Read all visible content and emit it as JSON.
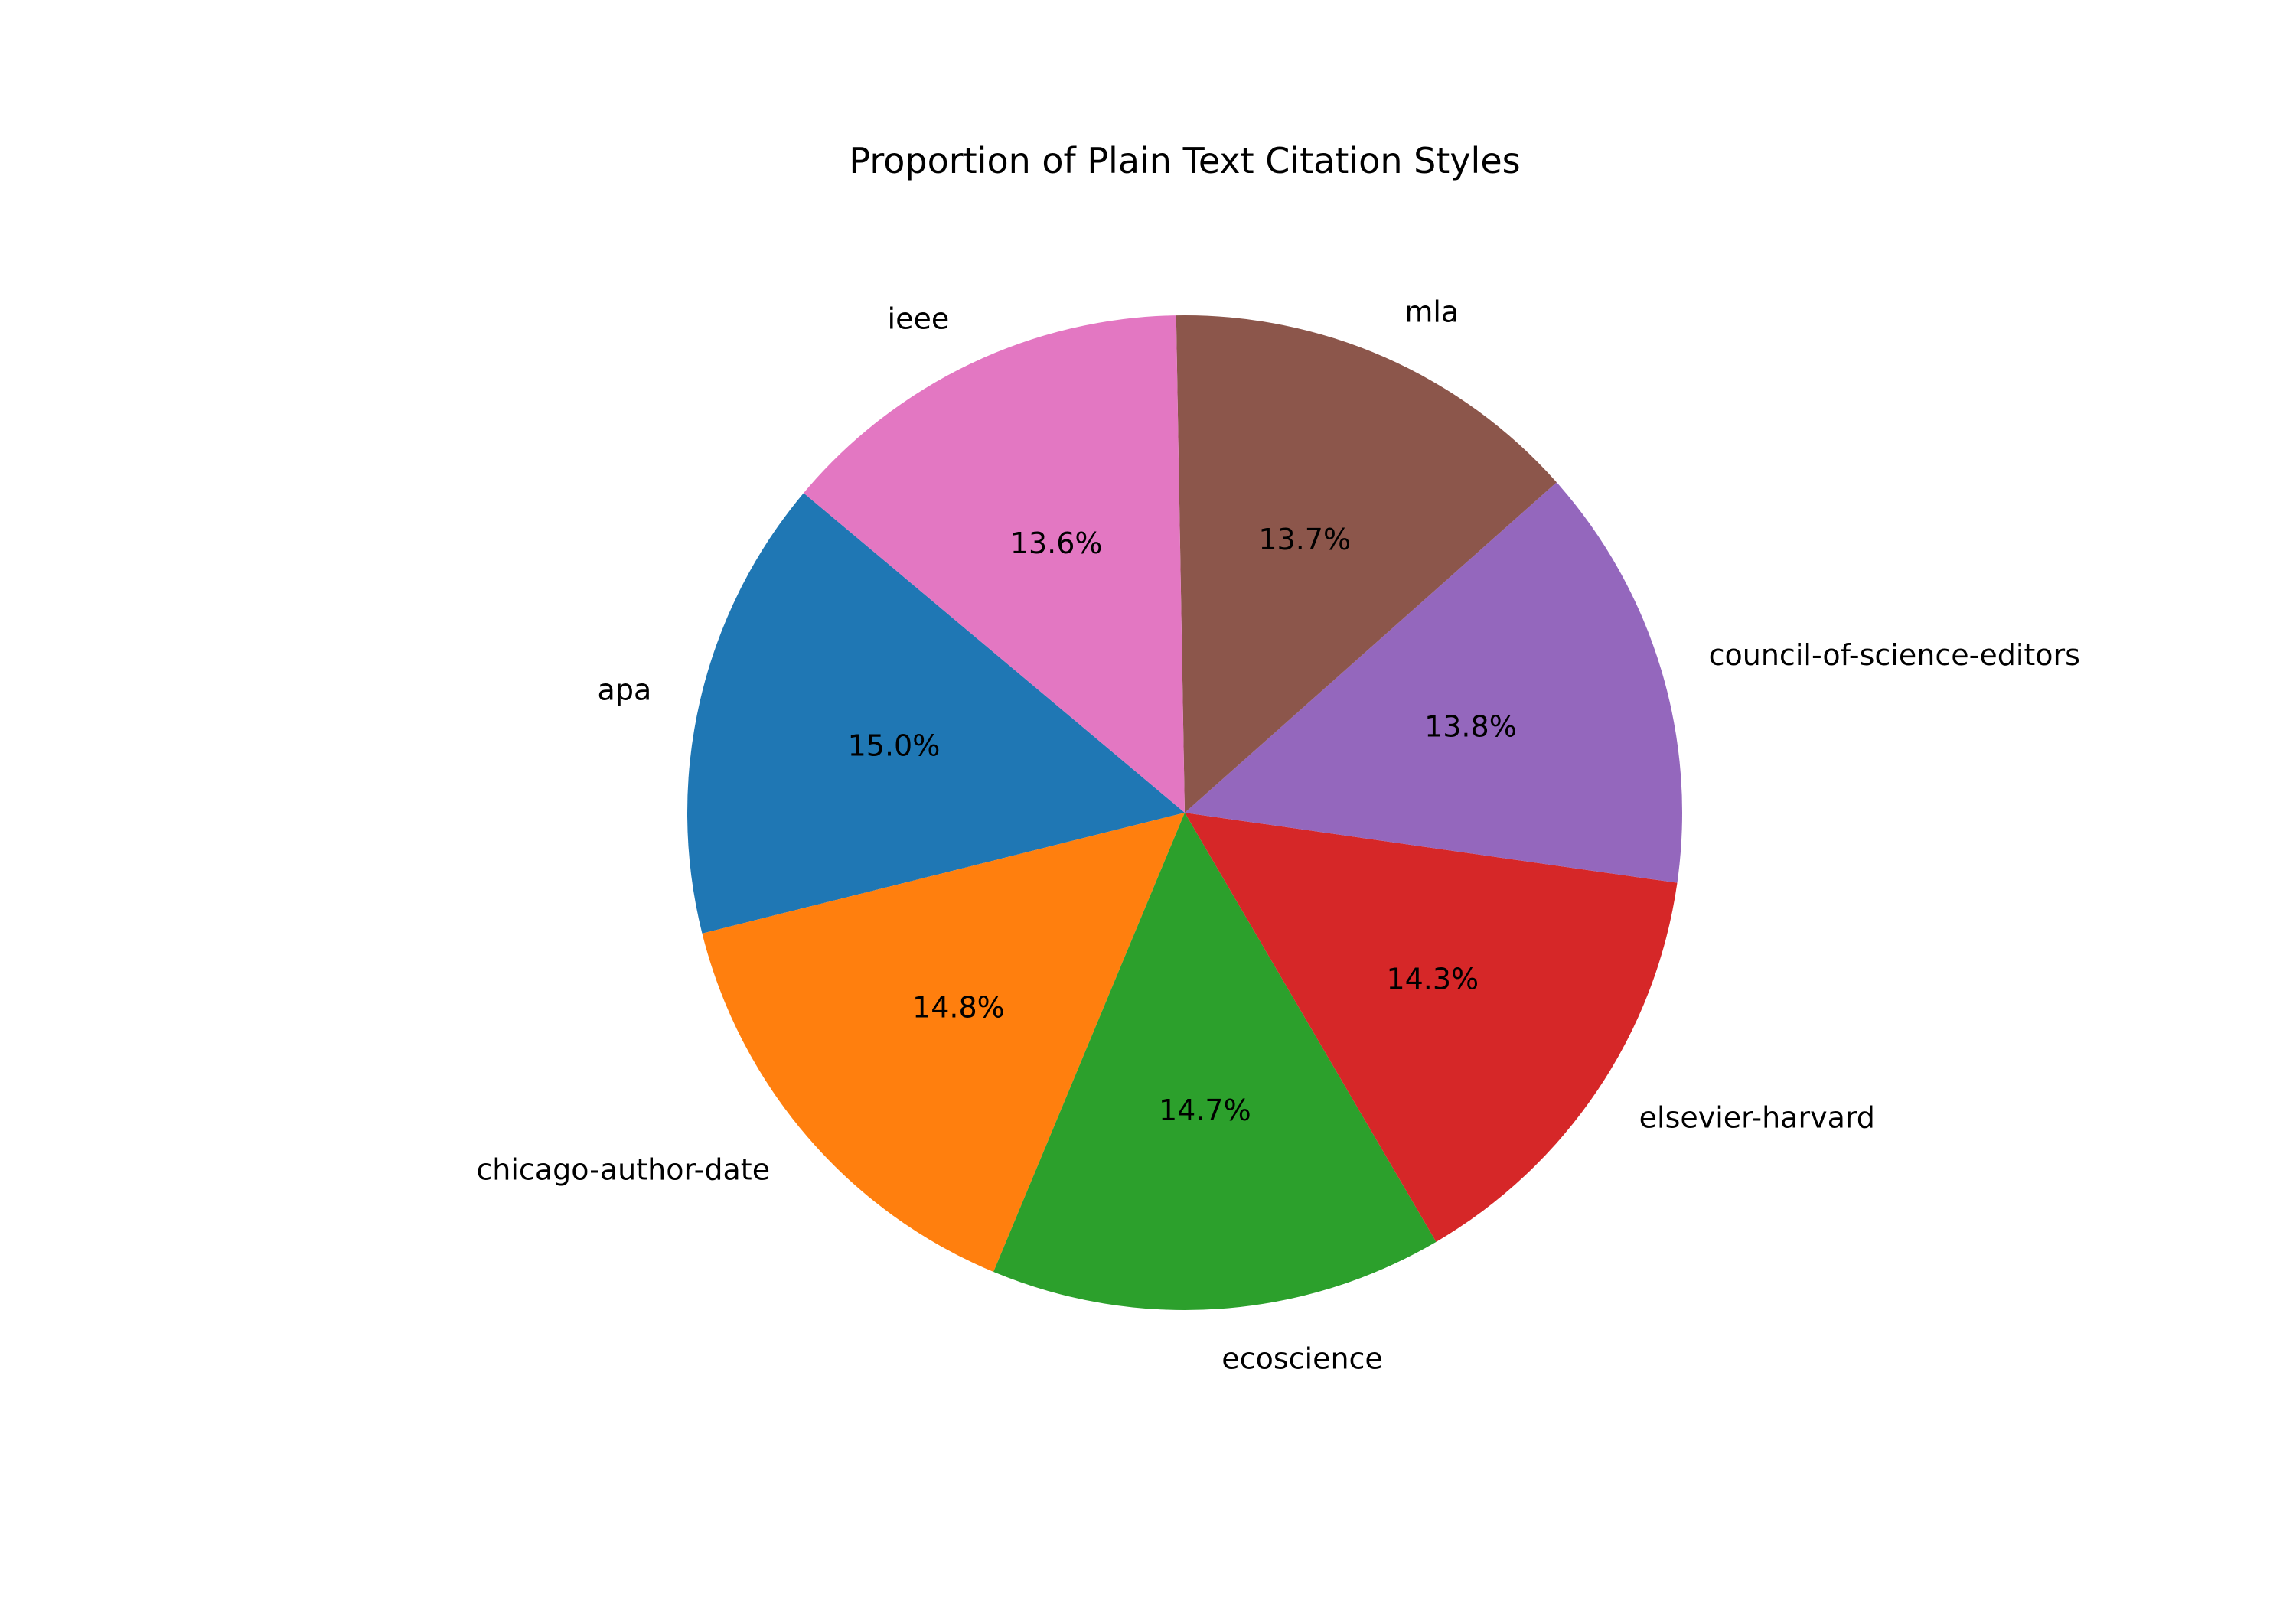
{
  "chart_data": {
    "type": "pie",
    "title": "Proportion of Plain Text Citation Styles",
    "start_angle_deg": 140,
    "direction": "counterclockwise",
    "categories": [
      "apa",
      "chicago-author-date",
      "ecoscience",
      "elsevier-harvard",
      "council-of-science-editors",
      "mla",
      "ieee"
    ],
    "values": [
      15.0,
      14.8,
      14.7,
      14.3,
      13.8,
      13.7,
      13.6
    ],
    "value_labels": [
      "15.0%",
      "14.8%",
      "14.7%",
      "14.3%",
      "13.8%",
      "13.7%",
      "13.6%"
    ],
    "colors": [
      "#1f77b4",
      "#ff7f0e",
      "#2ca02c",
      "#d62728",
      "#9467bd",
      "#8c564b",
      "#e377c2"
    ]
  }
}
